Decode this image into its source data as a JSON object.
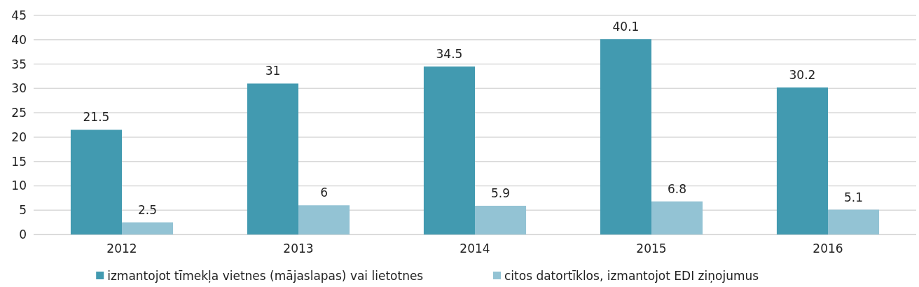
{
  "chart_data": {
    "type": "bar",
    "categories": [
      "2012",
      "2013",
      "2014",
      "2015",
      "2016"
    ],
    "series": [
      {
        "name": "izmantojot tīmekļa vietnes (mājaslapas) vai lietotnes",
        "color": "#429ab0",
        "values": [
          21.5,
          31,
          34.5,
          40.1,
          30.2
        ]
      },
      {
        "name": "citos datortīklos, izmantojot EDI ziņojumus",
        "color": "#93c3d4",
        "values": [
          2.5,
          6,
          5.9,
          6.8,
          5.1
        ]
      }
    ],
    "ylim": [
      0,
      45
    ],
    "yticks": [
      0,
      5,
      10,
      15,
      20,
      25,
      30,
      35,
      40,
      45
    ],
    "grid": "y",
    "legend": "bottom",
    "data_labels": true
  }
}
